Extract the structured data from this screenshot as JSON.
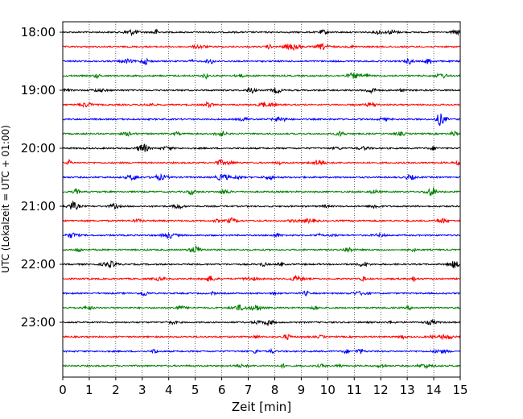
{
  "chart_data": {
    "type": "line",
    "title": "",
    "xlabel": "Zeit  [min]",
    "ylabel": "UTC (Lokalzeit = UTC + 01:00)",
    "xlim": [
      0,
      15
    ],
    "x_ticks": [
      0,
      1,
      2,
      3,
      4,
      5,
      6,
      7,
      8,
      9,
      10,
      11,
      12,
      13,
      14,
      15
    ],
    "y_tick_labels": [
      "18:00",
      "19:00",
      "20:00",
      "21:00",
      "22:00",
      "23:00"
    ],
    "y_tick_rows": [
      0,
      4,
      8,
      12,
      16,
      20
    ],
    "grid_x": true,
    "grid_style": "dotted",
    "rows_per_hour": 4,
    "minutes_per_row": 15,
    "trace_count": 24,
    "trace_colors": [
      "#000000",
      "#ff0000",
      "#0000ff",
      "#008000"
    ],
    "trace_start_labels": [
      "18:00",
      "18:15",
      "18:30",
      "18:45",
      "19:00",
      "19:15",
      "19:30",
      "19:45",
      "20:00",
      "20:15",
      "20:30",
      "20:45",
      "21:00",
      "21:15",
      "21:30",
      "21:45",
      "22:00",
      "22:15",
      "22:30",
      "22:45",
      "23:00",
      "23:15",
      "23:30",
      "23:45"
    ]
  }
}
